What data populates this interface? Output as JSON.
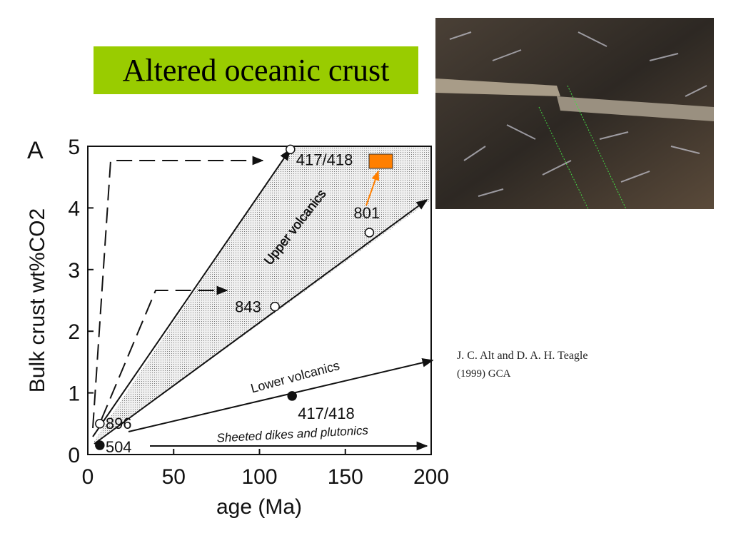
{
  "slide": {
    "title": "Altered oceanic crust",
    "citation": [
      "J. C. Alt and D. A. H. Teagle",
      "(1999)  GCA"
    ]
  },
  "chart_data": {
    "type": "scatter",
    "panel_label": "A",
    "x_label": "age (Ma)",
    "y_label": "Bulk crust wt%CO2",
    "xlim": [
      0,
      200
    ],
    "ylim": [
      0,
      5
    ],
    "xticks": [
      0,
      50,
      100,
      150,
      200
    ],
    "yticks": [
      0,
      1,
      2,
      3,
      4,
      5
    ],
    "points": [
      {
        "label": "417/418",
        "x": 118,
        "y": 4.95,
        "filled": false
      },
      {
        "label": "801",
        "x": 164,
        "y": 3.6,
        "filled": false
      },
      {
        "label": "843",
        "x": 109,
        "y": 2.4,
        "filled": false
      },
      {
        "label": "896",
        "x": 7,
        "y": 0.5,
        "filled": false
      },
      {
        "label": "504",
        "x": 7,
        "y": 0.15,
        "filled": true
      },
      {
        "label": "417/418",
        "x": 119,
        "y": 0.95,
        "filled": true
      }
    ],
    "annotations": [
      "Upper volcanics",
      "Lower volcanics",
      "Sheeted dikes and plutonics"
    ]
  }
}
